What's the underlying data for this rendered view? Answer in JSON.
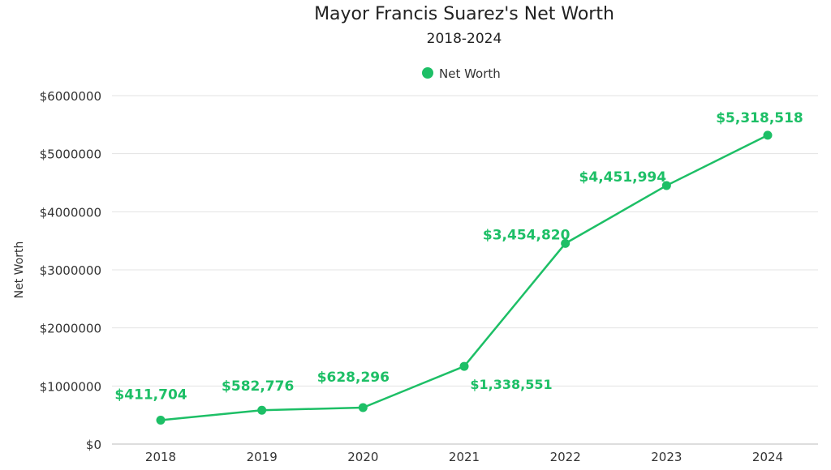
{
  "chart_data": {
    "type": "line",
    "title": "Mayor Francis Suarez's Net Worth",
    "subtitle": "2018-2024",
    "xlabel": "",
    "ylabel": "Net Worth",
    "legend": {
      "position": "top",
      "entries": [
        "Net Worth"
      ]
    },
    "categories": [
      "2018",
      "2019",
      "2020",
      "2021",
      "2022",
      "2023",
      "2024"
    ],
    "series": [
      {
        "name": "Net Worth",
        "color": "#1dbf66",
        "values": [
          411704,
          582776,
          628296,
          1338551,
          3454820,
          4451994,
          5318518
        ],
        "labels": [
          "$411,704",
          "$582,776",
          "$628,296",
          "$1,338,551",
          "$3,454,820",
          "$4,451,994",
          "$5,318,518"
        ]
      }
    ],
    "ylim": [
      0,
      6000000
    ],
    "yticks": [
      0,
      1000000,
      2000000,
      3000000,
      4000000,
      5000000,
      6000000
    ],
    "ytick_labels": [
      "$0",
      "$1000000",
      "$2000000",
      "$3000000",
      "$4000000",
      "$5000000",
      "$6000000"
    ],
    "grid": true
  }
}
